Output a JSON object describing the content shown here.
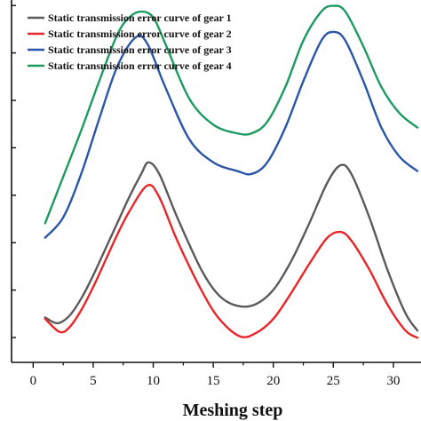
{
  "chart_data": {
    "type": "line",
    "title": "",
    "xlabel": "Meshing step",
    "ylabel": "",
    "xlim": [
      -1.8,
      32.3
    ],
    "ylim": [
      -0.05,
      1.2
    ],
    "xticks": [
      0,
      5,
      10,
      15,
      20,
      25,
      30
    ],
    "xtick_labels": [
      "0",
      "5",
      "10",
      "15",
      "20",
      "25",
      "30"
    ],
    "y_tick_count": 8,
    "grid": false,
    "legend_position": "top-left",
    "series": [
      {
        "name": "Static transmission error curve of gear 1",
        "color": "#5a5a5a",
        "x": [
          1,
          2,
          3,
          4,
          5,
          6,
          7,
          8,
          9,
          9.6,
          10.5,
          12,
          14,
          15.5,
          17,
          18.5,
          20,
          21.5,
          23,
          24.5,
          25.6,
          26.5,
          28,
          29.5,
          31,
          32
        ],
        "y": [
          0.105,
          0.085,
          0.11,
          0.17,
          0.25,
          0.34,
          0.43,
          0.52,
          0.6,
          0.64,
          0.6,
          0.45,
          0.27,
          0.18,
          0.145,
          0.15,
          0.2,
          0.3,
          0.43,
          0.57,
          0.63,
          0.6,
          0.45,
          0.27,
          0.12,
          0.06
        ]
      },
      {
        "name": "Static transmission error curve of gear 2",
        "color": "#e8262a",
        "x": [
          1,
          2.2,
          3,
          4,
          5,
          6,
          7,
          8,
          9.5,
          10.5,
          12,
          14,
          15.5,
          17.2,
          18.5,
          20,
          21.5,
          23,
          24.5,
          25.6,
          26.5,
          28,
          29.5,
          31,
          32
        ],
        "y": [
          0.1,
          0.055,
          0.07,
          0.13,
          0.21,
          0.3,
          0.39,
          0.47,
          0.56,
          0.52,
          0.37,
          0.2,
          0.1,
          0.04,
          0.05,
          0.1,
          0.19,
          0.29,
          0.38,
          0.4,
          0.37,
          0.27,
          0.15,
          0.06,
          0.035
        ]
      },
      {
        "name": "Static transmission error curve of gear 3",
        "color": "#2b55a8",
        "x": [
          1,
          2.5,
          4,
          5.5,
          7,
          8.5,
          9.5,
          11,
          13,
          15,
          17,
          18.2,
          19.5,
          21,
          22.5,
          24,
          25,
          26,
          27.5,
          29,
          30.5,
          32
        ],
        "y": [
          0.38,
          0.45,
          0.6,
          0.79,
          0.97,
          1.07,
          1.05,
          0.9,
          0.72,
          0.64,
          0.61,
          0.6,
          0.64,
          0.76,
          0.92,
          1.06,
          1.09,
          1.06,
          0.92,
          0.76,
          0.66,
          0.61
        ]
      },
      {
        "name": "Static transmission error curve of gear 4",
        "color": "#1d9a5f",
        "x": [
          1,
          2.5,
          4,
          5.5,
          7,
          8,
          9,
          10,
          11,
          13,
          15,
          17,
          18.2,
          19.5,
          21,
          22.5,
          24,
          25,
          26,
          27.5,
          29,
          30.5,
          32
        ],
        "y": [
          0.43,
          0.59,
          0.75,
          0.92,
          1.08,
          1.14,
          1.16,
          1.14,
          1.05,
          0.86,
          0.77,
          0.74,
          0.74,
          0.78,
          0.9,
          1.06,
          1.16,
          1.18,
          1.16,
          1.04,
          0.9,
          0.81,
          0.76
        ]
      }
    ]
  }
}
